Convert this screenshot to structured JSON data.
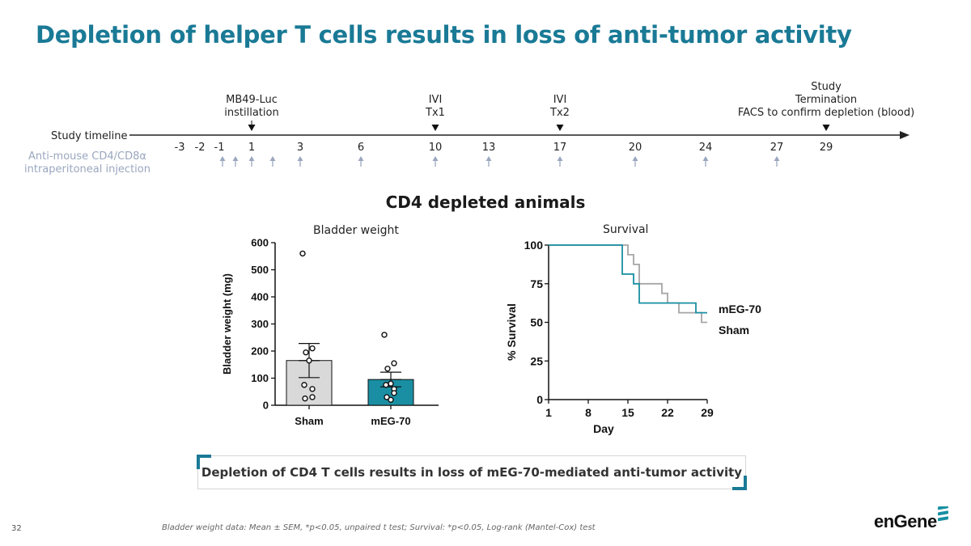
{
  "title": "Depletion of helper T cells results in loss of anti-tumor activity",
  "timeline": {
    "label": "Study timeline",
    "injection_label_line1": "Anti-mouse CD4/CD8α",
    "injection_label_line2": "intraperitoneal injection",
    "days": [
      "-3",
      "-2",
      "-1",
      "1",
      "3",
      "6",
      "10",
      "13",
      "17",
      "20",
      "24",
      "27",
      "29"
    ],
    "injection_days": [
      "-3",
      "-2",
      "1",
      "3",
      "6",
      "10",
      "13",
      "17",
      "20",
      "24",
      "27"
    ],
    "injection_extra": [
      "-1"
    ],
    "events": [
      {
        "day": "1",
        "line1": "MB49-Luc",
        "line2": "instillation",
        "line0": ""
      },
      {
        "day": "10",
        "line1": "IVI",
        "line2": "Tx1",
        "line0": ""
      },
      {
        "day": "17",
        "line1": "IVI",
        "line2": "Tx2",
        "line0": ""
      },
      {
        "day": "29",
        "line0": "Study",
        "line1": "Termination",
        "line2": "FACS to confirm depletion (blood)"
      }
    ],
    "colors": {
      "injection_arrow": "#9aa7bf",
      "axis": "#222222"
    }
  },
  "section_title": "CD4 depleted animals",
  "chart_data": [
    {
      "type": "bar",
      "title": "Bladder weight",
      "ylabel": "Bladder weight (mg)",
      "xlabel": "",
      "categories": [
        "Sham",
        "mEG-70"
      ],
      "values": [
        165,
        95
      ],
      "sem": [
        63,
        27
      ],
      "ylim": [
        0,
        600
      ],
      "yticks": [
        0,
        100,
        200,
        300,
        400,
        500,
        600
      ],
      "colors": [
        "#d9d9d9",
        "#1a8fa3"
      ],
      "points": [
        [
          560,
          210,
          195,
          165,
          75,
          60,
          30,
          25
        ],
        [
          260,
          155,
          135,
          80,
          75,
          60,
          45,
          30,
          20
        ]
      ]
    },
    {
      "type": "line",
      "title": "Survival",
      "ylabel": "% Survival",
      "xlabel": "Day",
      "xticks": [
        1,
        8,
        15,
        22,
        29
      ],
      "yticks": [
        0,
        25,
        50,
        75,
        100
      ],
      "xlim": [
        1,
        29
      ],
      "ylim": [
        0,
        100
      ],
      "series": [
        {
          "name": "mEG-70",
          "color": "#1a8fa3",
          "steps": [
            [
              1,
              100
            ],
            [
              14,
              100
            ],
            [
              14,
              81.25
            ],
            [
              16,
              81.25
            ],
            [
              16,
              75
            ],
            [
              17,
              75
            ],
            [
              17,
              62.5
            ],
            [
              27,
              62.5
            ],
            [
              27,
              56.25
            ],
            [
              29,
              56.25
            ]
          ]
        },
        {
          "name": "Sham",
          "color": "#a6a6a6",
          "steps": [
            [
              1,
              100
            ],
            [
              15,
              100
            ],
            [
              15,
              93.75
            ],
            [
              16,
              93.75
            ],
            [
              16,
              87.5
            ],
            [
              17,
              87.5
            ],
            [
              17,
              75
            ],
            [
              21,
              75
            ],
            [
              21,
              68.75
            ],
            [
              22,
              68.75
            ],
            [
              22,
              62.5
            ],
            [
              24,
              62.5
            ],
            [
              24,
              56.25
            ],
            [
              28,
              56.25
            ],
            [
              28,
              50
            ],
            [
              29,
              50
            ]
          ]
        }
      ]
    }
  ],
  "callout": "Depletion of CD4 T cells results in loss of mEG-70-mediated anti-tumor activity",
  "page_number": "32",
  "footnote": "Bladder weight data: Mean ± SEM, *p<0.05, unpaired t test; Survival: *p<0.05, Log-rank (Mantel-Cox) test",
  "logo": "enGene"
}
